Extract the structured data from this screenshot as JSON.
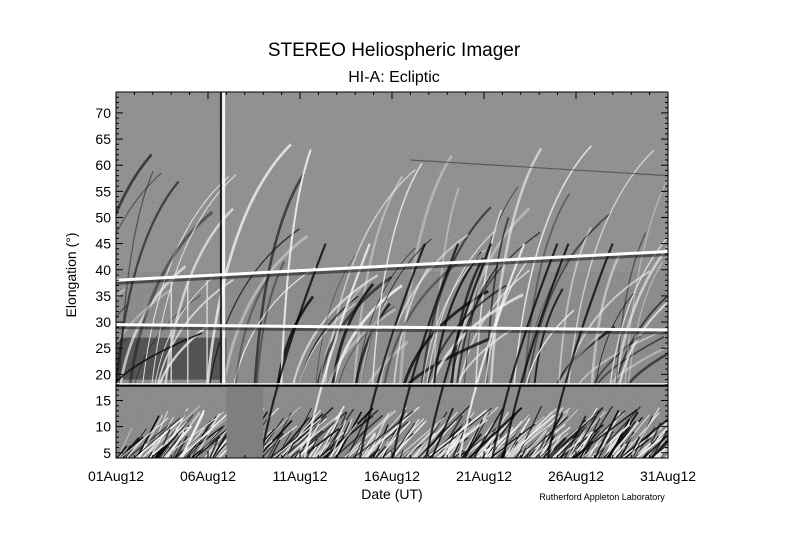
{
  "chart_data": {
    "type": "heatmap",
    "title": "STEREO Heliospheric Imager",
    "subtitle": "HI-A: Ecliptic",
    "xlabel": "Date (UT)",
    "ylabel": "Elongation (°)",
    "credit": "Rutherford Appleton Laboratory",
    "x_range": [
      "2012-08-01",
      "2012-08-31"
    ],
    "ylim": [
      4,
      74
    ],
    "x_tick_labels": [
      "01Aug12",
      "06Aug12",
      "11Aug12",
      "16Aug12",
      "21Aug12",
      "26Aug12",
      "31Aug12"
    ],
    "y_ticks": [
      5,
      10,
      15,
      20,
      25,
      30,
      35,
      40,
      45,
      50,
      55,
      60,
      65,
      70
    ],
    "instrument_boundary_elongation": 18,
    "data_gap": {
      "instrument": "HI-1",
      "start": "2012-08-07",
      "end": "2012-08-09"
    },
    "features": [
      {
        "name": "bright horizontal band",
        "start": "2012-08-01",
        "end": "2012-08-31",
        "elongation_start": 38,
        "elongation_end": 43.5
      },
      {
        "name": "bright horizontal band",
        "start": "2012-08-01",
        "end": "2012-08-31",
        "elongation_start": 29.5,
        "elongation_end": 28.5
      },
      {
        "name": "faint line",
        "start": "2012-08-17",
        "end": "2012-08-31",
        "elongation_start": 61,
        "elongation_end": 58
      }
    ],
    "colormap": "grayscale",
    "grid": false,
    "legend": "none"
  }
}
